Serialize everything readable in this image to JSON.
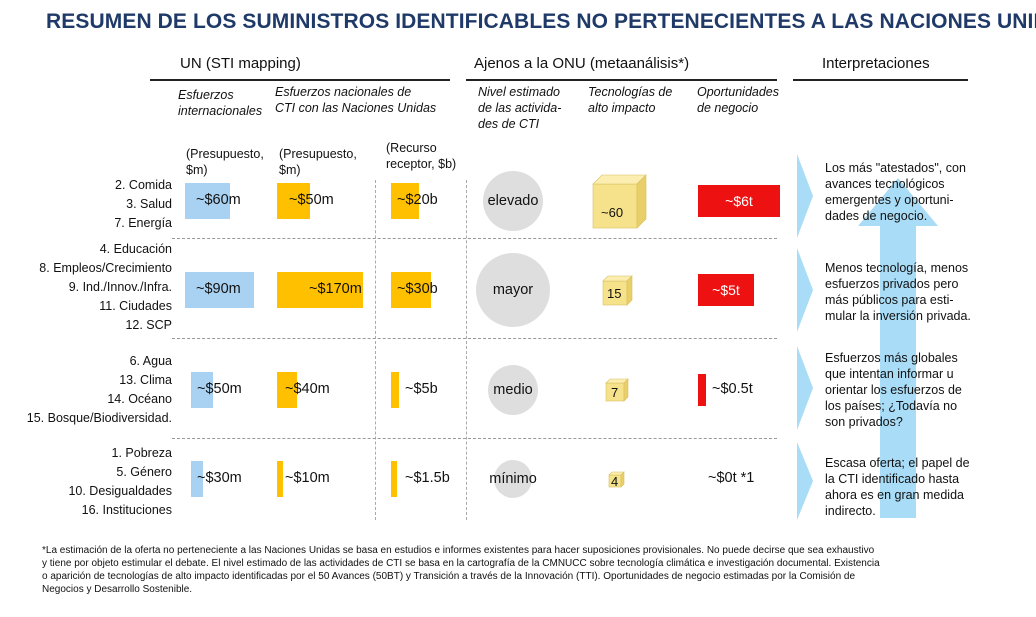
{
  "title": "RESUMEN DE LOS SUMINISTROS IDENTIFICABLES NO PERTENECIENTES A LAS NACIONES UNIDAS",
  "headers": {
    "un": "UN  (STI mapping)",
    "non_un": "Ajenos a la ONU (metaanálisis*)",
    "interp": "Interpretaciones"
  },
  "subheaders": {
    "intl": [
      "Esfuerzos",
      "internacionales"
    ],
    "natl": [
      "Esfuerzos nacionales de",
      "CTI con las Naciones Unidas"
    ],
    "level": [
      "Nivel estimado",
      "de las activida-",
      "des de CTI"
    ],
    "tech": [
      "Tecnologías de",
      "alto impacto"
    ],
    "biz": [
      "Oportunidades",
      "de negocio"
    ]
  },
  "units": {
    "intl": [
      "(Presupuesto,",
      "$m)"
    ],
    "natl": [
      "(Presupuesto,",
      "$m)"
    ],
    "rec": [
      "(Recurso",
      "receptor, $b)"
    ]
  },
  "groups": [
    {
      "labels": [
        "2. Comida",
        "3. Salud",
        "7. Energía"
      ],
      "intl": "~$60m",
      "intl_value": 60,
      "natl": "~$50m",
      "natl_value": 50,
      "rec": "~$20b",
      "rec_value": 20,
      "level": "elevado",
      "tech": "~60",
      "biz": "~$6t",
      "interp": [
        "Los más \"atestados\", con",
        "avances tecnológicos",
        "emergentes y oportuni-",
        "dades de negocio."
      ]
    },
    {
      "labels": [
        "4. Educación",
        "8. Empleos/Crecimiento",
        "9. Ind./Innov./Infra.",
        "11. Ciudades",
        "12. SCP"
      ],
      "intl": "~$90m",
      "intl_value": 90,
      "natl": "~$170m",
      "natl_value": 170,
      "rec": "~$30b",
      "rec_value": 30,
      "level": "mayor",
      "tech": "15",
      "biz": "~$5t",
      "interp": [
        "Menos tecnología, menos",
        "esfuerzos privados pero",
        "más públicos para esti-",
        "mular la inversión privada."
      ]
    },
    {
      "labels": [
        "6. Agua",
        "13. Clima",
        "14. Océano",
        "15. Bosque/Biodiversidad."
      ],
      "intl": "~$50m",
      "intl_value": 50,
      "natl": "~$40m",
      "natl_value": 40,
      "rec": "~$5b",
      "rec_value": 5,
      "level": "medio",
      "tech": "7",
      "biz": "~$0.5t",
      "interp": [
        "Esfuerzos más globales",
        "que intentan informar u",
        "orientar los esfuerzos de",
        "los países; ¿Todavía no",
        "son privados?"
      ]
    },
    {
      "labels": [
        "1. Pobreza",
        "5. Género",
        "10. Desigualdades",
        "16. Instituciones"
      ],
      "intl": "~$30m",
      "intl_value": 30,
      "natl": "~$10m",
      "natl_value": 10,
      "rec": "~$1.5b",
      "rec_value": 1.5,
      "level": "mínimo",
      "tech": "4",
      "biz": "~$0t *1",
      "interp": [
        "Escasa oferta; el papel de",
        "la CTI identificado hasta",
        "ahora es en gran medida",
        "indirecto."
      ]
    }
  ],
  "colors": {
    "title": "#1f3a68",
    "intl_bar": "#a9d2f2",
    "natl_bar": "#ffc000",
    "cube": "#f6e28a",
    "biz": "#ee1111",
    "arrow": "#a9dcf6"
  },
  "footer": [
    "*La estimación de la oferta no perteneciente a las Naciones Unidas se basa en estudios e informes existentes para hacer suposiciones provisionales.  No puede decirse que sea exhaustivo",
    "y tiene por objeto estimular el debate. El nivel estimado de las actividades de CTI se basa en la cartografía de la CMNUCC sobre tecnología climática e investigación documental. Existencia",
    "o aparición de tecnologías de alto impacto identificadas por el 50 Avances (50BT) y Transición a través de la Innovación (TTI).  Oportunidades de negocio estimadas por la Comisión de",
    "Negocios y Desarrollo Sostenible."
  ]
}
